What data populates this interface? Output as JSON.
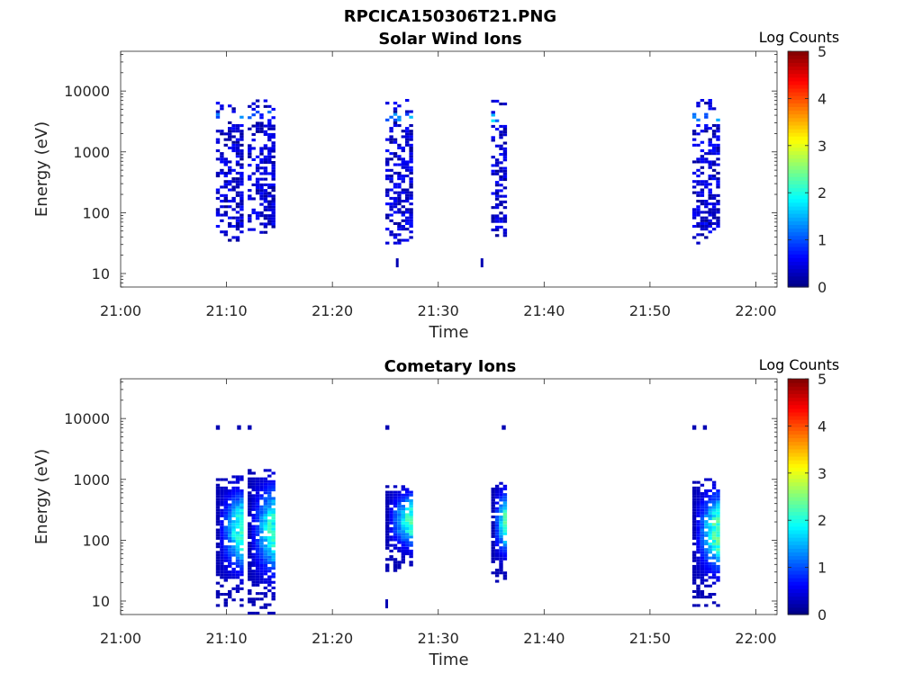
{
  "figure": {
    "title": "RPCICA150306T21.PNG"
  },
  "colorbar": {
    "label": "Log Counts",
    "ticks": [
      "0",
      "1",
      "2",
      "3",
      "4",
      "5"
    ],
    "range": [
      0,
      5
    ],
    "colormap": "jet"
  },
  "chart_data": [
    {
      "type": "heatmap",
      "title": "Solar Wind Ions",
      "xlabel": "Time",
      "ylabel": "Energy (eV)",
      "yscale": "log",
      "xlim": [
        "21:00",
        "22:02"
      ],
      "ylim": [
        6,
        45000
      ],
      "x_ticks": [
        "21:00",
        "21:10",
        "21:20",
        "21:30",
        "21:40",
        "21:50",
        "22:00"
      ],
      "y_ticks": [
        "10",
        "100",
        "1000",
        "10000"
      ],
      "bursts": [
        {
          "start": "21:09",
          "end": "21:11",
          "e_min": 30,
          "e_max": 7000,
          "log_counts": [
            0,
            1.5
          ]
        },
        {
          "start": "21:12",
          "end": "21:14",
          "e_min": 45,
          "e_max": 7500,
          "log_counts": [
            0,
            1.3
          ]
        },
        {
          "start": "21:25",
          "end": "21:27",
          "e_min": 30,
          "e_max": 7000,
          "log_counts": [
            0,
            1.8
          ]
        },
        {
          "start": "21:35",
          "end": "21:36",
          "e_min": 40,
          "e_max": 7000,
          "log_counts": [
            0,
            1.8
          ]
        },
        {
          "start": "21:54",
          "end": "21:56",
          "e_min": 30,
          "e_max": 7000,
          "log_counts": [
            0,
            1.6
          ]
        }
      ],
      "isolated_points": [
        {
          "time": "21:26",
          "energy": 15
        },
        {
          "time": "21:34",
          "energy": 15
        }
      ]
    },
    {
      "type": "heatmap",
      "title": "Cometary Ions",
      "xlabel": "Time",
      "ylabel": "Energy (eV)",
      "yscale": "log",
      "xlim": [
        "21:00",
        "22:02"
      ],
      "ylim": [
        6,
        45000
      ],
      "x_ticks": [
        "21:00",
        "21:10",
        "21:20",
        "21:30",
        "21:40",
        "21:50",
        "22:00"
      ],
      "y_ticks": [
        "10",
        "100",
        "1000",
        "10000"
      ],
      "bursts": [
        {
          "start": "21:09",
          "end": "21:11",
          "e_min": 8,
          "e_max": 1100,
          "log_counts": [
            0,
            2.0
          ]
        },
        {
          "start": "21:12",
          "end": "21:14",
          "e_min": 6,
          "e_max": 1400,
          "log_counts": [
            0,
            2.0
          ]
        },
        {
          "start": "21:25",
          "end": "21:27",
          "e_min": 30,
          "e_max": 800,
          "log_counts": [
            0,
            2.1
          ]
        },
        {
          "start": "21:35",
          "end": "21:36",
          "e_min": 20,
          "e_max": 900,
          "log_counts": [
            0,
            2.2
          ]
        },
        {
          "start": "21:54",
          "end": "21:56",
          "e_min": 8,
          "e_max": 1000,
          "log_counts": [
            0,
            2.2
          ]
        }
      ],
      "high_energy_traces": [
        {
          "start": "21:09",
          "end": "21:11",
          "energy": 7000
        },
        {
          "start": "21:12",
          "end": "21:14",
          "energy": 7000
        },
        {
          "start": "21:25",
          "end": "21:27",
          "energy": 7000
        },
        {
          "start": "21:35",
          "end": "21:36",
          "energy": 7000
        },
        {
          "start": "21:54",
          "end": "21:56",
          "energy": 7000
        }
      ],
      "isolated_points": [
        {
          "time": "21:25",
          "energy": 9
        }
      ]
    }
  ]
}
